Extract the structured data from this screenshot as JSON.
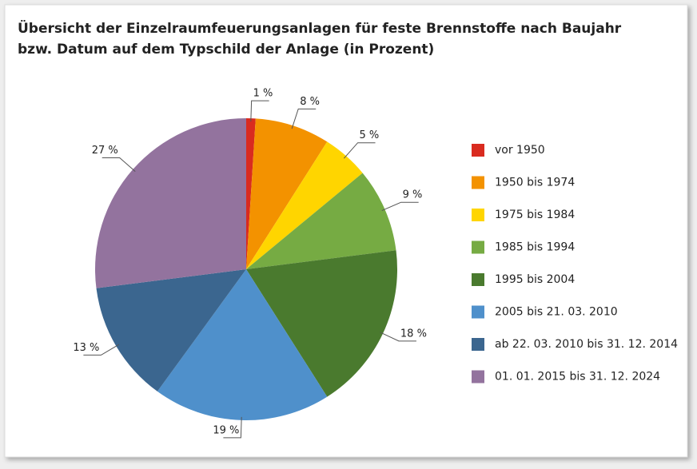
{
  "chart_data": {
    "type": "pie",
    "title": [
      "Übersicht der Einzelraumfeuerungsanlagen für feste Brennstoffe nach Baujahr",
      "bzw. Datum auf dem Typschild der Anlage (in Prozent)"
    ],
    "categories": [
      "vor 1950",
      "1950 bis 1974",
      "1975 bis 1984",
      "1985 bis 1994",
      "1995 bis 2004",
      "2005 bis 21. 03. 2010",
      "ab 22. 03. 2010 bis 31. 12. 2014",
      "01. 01. 2015 bis 31. 12. 2024"
    ],
    "values": [
      1,
      8,
      5,
      9,
      18,
      19,
      13,
      27
    ],
    "value_labels": [
      "1 %",
      "8 %",
      "5 %",
      "9 %",
      "18 %",
      "19 %",
      "13 %",
      "27 %"
    ],
    "colors": [
      "#d92b1f",
      "#f39200",
      "#ffd500",
      "#76ab43",
      "#4a7a2e",
      "#4f90cb",
      "#3b668f",
      "#93739e"
    ],
    "legend": "right"
  }
}
